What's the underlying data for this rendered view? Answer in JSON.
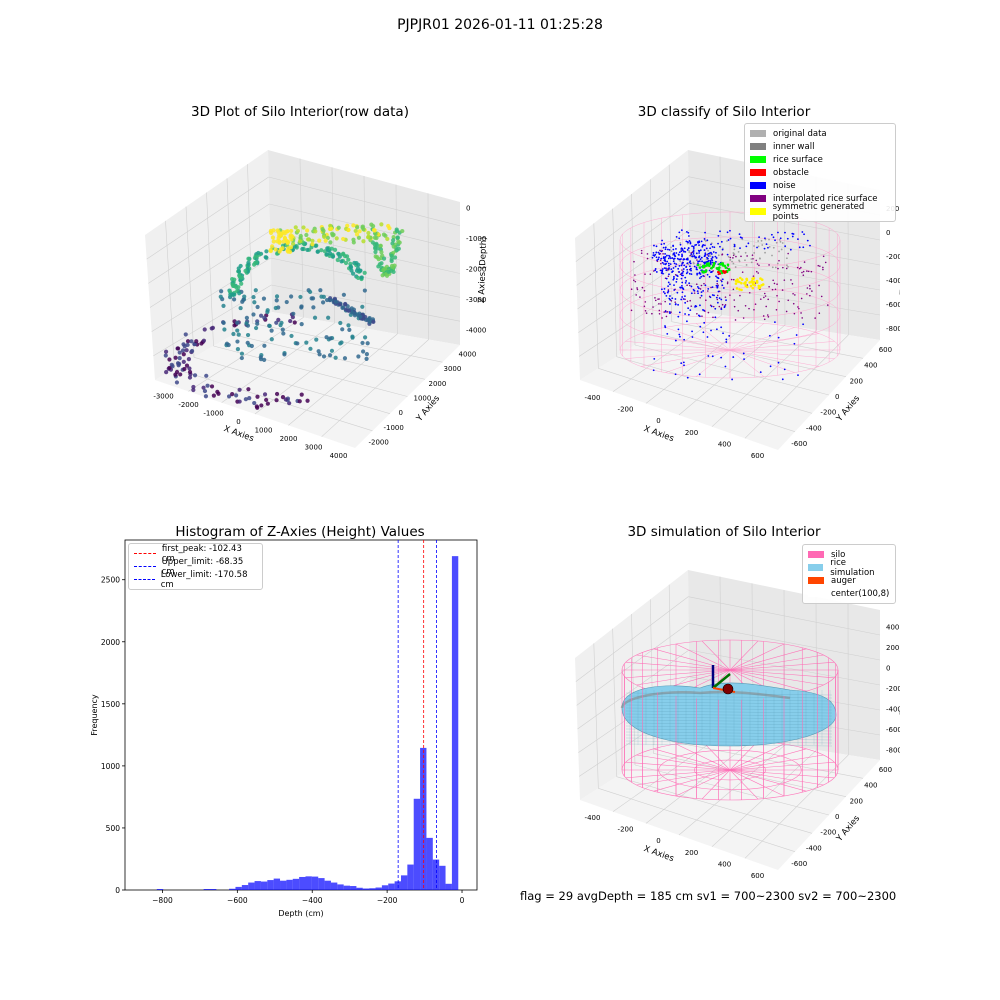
{
  "suptitle": "PJPJR01 2026-01-11 01:25:28",
  "panels": {
    "raw": {
      "title": "3D Plot of Silo Interior(row data)",
      "xlabel": "X Axies",
      "ylabel": "Y Axies",
      "zlabel": "Z Axies (Depth)",
      "xticks": [
        "-3000",
        "-2000",
        "-1000",
        "0",
        "1000",
        "2000",
        "3000",
        "4000"
      ],
      "yticks": [
        "-2000",
        "-1000",
        "0",
        "1000",
        "2000",
        "3000",
        "4000"
      ],
      "zticks": [
        "0",
        "-1000",
        "-2000",
        "-3000",
        "-4000"
      ]
    },
    "classify": {
      "title": "3D classify of Silo Interior",
      "xlabel": "X Axies",
      "ylabel": "Y Axies",
      "zlabel": "Z Axies (Depth)",
      "xticks": [
        "-400",
        "-200",
        "0",
        "200",
        "400",
        "600"
      ],
      "yticks": [
        "-600",
        "-400",
        "-200",
        "0",
        "200",
        "400",
        "600"
      ],
      "zticks": [
        "200",
        "0",
        "-200",
        "-400",
        "-600",
        "-800"
      ],
      "legend": [
        {
          "label": "original data",
          "color": "#b0b0b0"
        },
        {
          "label": "inner wall",
          "color": "#808080"
        },
        {
          "label": "rice surface",
          "color": "#00ff00"
        },
        {
          "label": "obstacle",
          "color": "#ff0000"
        },
        {
          "label": "noise",
          "color": "#0000ff"
        },
        {
          "label": "interpolated rice surface",
          "color": "#800080"
        },
        {
          "label": "symmetric generated points",
          "color": "#ffff00"
        }
      ]
    },
    "histogram": {
      "title": "Histogram of Z-Axies (Height) Values",
      "xlabel": "Depth (cm)",
      "ylabel": "Frequency",
      "legend": [
        {
          "label": "first_peak: -102.43 cm",
          "color": "#ff0000"
        },
        {
          "label": "Upper_limit: -68.35 cm",
          "color": "#0000ff"
        },
        {
          "label": "Lower_limit: -170.58 cm",
          "color": "#0000ff"
        }
      ]
    },
    "simulation": {
      "title": "3D simulation of Silo Interior",
      "xlabel": "X Axies",
      "ylabel": "Y Axies",
      "zlabel": "Z Axies (Depth)",
      "xticks": [
        "-400",
        "-200",
        "0",
        "200",
        "400",
        "600"
      ],
      "yticks": [
        "-600",
        "-400",
        "-200",
        "0",
        "200",
        "400",
        "600"
      ],
      "zticks": [
        "400",
        "200",
        "0",
        "-200",
        "-400",
        "-600",
        "-800"
      ],
      "legend": [
        {
          "label": "silo",
          "color": "#ff69b4"
        },
        {
          "label": "rice simulation",
          "color": "#87ceeb"
        },
        {
          "label": "auger",
          "color": "#ff4500"
        },
        {
          "label": "center(100,8)",
          "color": "#ffffff"
        }
      ]
    }
  },
  "footer": "flag = 29  avgDepth = 185 cm  sv1 = 700~2300  sv2 = 700~2300",
  "chart_data": [
    {
      "type": "scatter",
      "title": "3D Plot of Silo Interior(row data)",
      "xlabel": "X Axies",
      "ylabel": "Y Axies",
      "zlabel": "Z Axies (Depth)",
      "xlim": [
        -3500,
        4500
      ],
      "ylim": [
        -2500,
        4500
      ],
      "zlim": [
        -4500,
        0
      ],
      "colormap": "viridis"
    },
    {
      "type": "scatter",
      "title": "3D classify of Silo Interior",
      "xlabel": "X Axies",
      "ylabel": "Y Axies",
      "zlabel": "Z Axies (Depth)",
      "xlim": [
        -500,
        700
      ],
      "ylim": [
        -600,
        600
      ],
      "zlim": [
        -900,
        300
      ],
      "series": [
        {
          "name": "original data",
          "color": "#b0b0b0"
        },
        {
          "name": "inner wall",
          "color": "#808080"
        },
        {
          "name": "rice surface",
          "color": "#00ff00"
        },
        {
          "name": "obstacle",
          "color": "#ff0000"
        },
        {
          "name": "noise",
          "color": "#0000ff"
        },
        {
          "name": "interpolated rice surface",
          "color": "#800080"
        },
        {
          "name": "symmetric generated points",
          "color": "#ffff00"
        }
      ]
    },
    {
      "type": "bar",
      "title": "Histogram of Z-Axies (Height) Values",
      "xlabel": "Depth (cm)",
      "ylabel": "Frequency",
      "xlim": [
        -900,
        40
      ],
      "ylim": [
        0,
        2820
      ],
      "xticks": [
        -800,
        -600,
        -400,
        -200,
        0
      ],
      "yticks": [
        0,
        500,
        1000,
        1500,
        2000,
        2500
      ],
      "bar_color": "#0000ff",
      "bins": [
        {
          "x0": -815,
          "x1": -798,
          "y": 8
        },
        {
          "x0": -690,
          "x1": -673,
          "y": 8
        },
        {
          "x0": -673,
          "x1": -656,
          "y": 8
        },
        {
          "x0": -622,
          "x1": -605,
          "y": 10
        },
        {
          "x0": -605,
          "x1": -588,
          "y": 25
        },
        {
          "x0": -588,
          "x1": -571,
          "y": 40
        },
        {
          "x0": -571,
          "x1": -554,
          "y": 60
        },
        {
          "x0": -554,
          "x1": -537,
          "y": 72
        },
        {
          "x0": -537,
          "x1": -520,
          "y": 68
        },
        {
          "x0": -520,
          "x1": -503,
          "y": 80
        },
        {
          "x0": -503,
          "x1": -486,
          "y": 92
        },
        {
          "x0": -486,
          "x1": -469,
          "y": 75
        },
        {
          "x0": -469,
          "x1": -452,
          "y": 82
        },
        {
          "x0": -452,
          "x1": -435,
          "y": 90
        },
        {
          "x0": -435,
          "x1": -418,
          "y": 105
        },
        {
          "x0": -418,
          "x1": -401,
          "y": 110
        },
        {
          "x0": -401,
          "x1": -384,
          "y": 108
        },
        {
          "x0": -384,
          "x1": -367,
          "y": 96
        },
        {
          "x0": -367,
          "x1": -350,
          "y": 75
        },
        {
          "x0": -350,
          "x1": -333,
          "y": 60
        },
        {
          "x0": -333,
          "x1": -316,
          "y": 45
        },
        {
          "x0": -316,
          "x1": -299,
          "y": 35
        },
        {
          "x0": -299,
          "x1": -282,
          "y": 32
        },
        {
          "x0": -282,
          "x1": -265,
          "y": 18
        },
        {
          "x0": -265,
          "x1": -248,
          "y": 12
        },
        {
          "x0": -248,
          "x1": -231,
          "y": 14
        },
        {
          "x0": -231,
          "x1": -214,
          "y": 20
        },
        {
          "x0": -214,
          "x1": -197,
          "y": 38
        },
        {
          "x0": -197,
          "x1": -180,
          "y": 52
        },
        {
          "x0": -180,
          "x1": -163,
          "y": 70
        },
        {
          "x0": -163,
          "x1": -146,
          "y": 118
        },
        {
          "x0": -146,
          "x1": -129,
          "y": 205
        },
        {
          "x0": -129,
          "x1": -112,
          "y": 735
        },
        {
          "x0": -112,
          "x1": -95,
          "y": 1145
        },
        {
          "x0": -95,
          "x1": -78,
          "y": 420
        },
        {
          "x0": -78,
          "x1": -61,
          "y": 245
        },
        {
          "x0": -61,
          "x1": -44,
          "y": 195
        },
        {
          "x0": -44,
          "x1": -27,
          "y": 50
        },
        {
          "x0": -27,
          "x1": -10,
          "y": 2690
        }
      ],
      "vlines": [
        {
          "name": "first_peak: -102.43 cm",
          "x": -102.43,
          "color": "#ff0000"
        },
        {
          "name": "Upper_limit: -68.35 cm",
          "x": -68.35,
          "color": "#0000ff"
        },
        {
          "name": "Lower_limit: -170.58 cm",
          "x": -170.58,
          "color": "#0000ff"
        }
      ]
    },
    {
      "type": "area",
      "title": "3D simulation of Silo Interior",
      "xlabel": "X Axies",
      "ylabel": "Y Axies",
      "zlabel": "Z Axies (Depth)",
      "xlim": [
        -500,
        700
      ],
      "ylim": [
        -600,
        600
      ],
      "zlim": [
        -900,
        450
      ],
      "series": [
        {
          "name": "silo",
          "color": "#ff69b4"
        },
        {
          "name": "rice simulation",
          "color": "#87ceeb"
        },
        {
          "name": "auger",
          "color": "#ff4500"
        },
        {
          "name": "center(100,8)",
          "color": "#ffffff"
        }
      ]
    }
  ]
}
